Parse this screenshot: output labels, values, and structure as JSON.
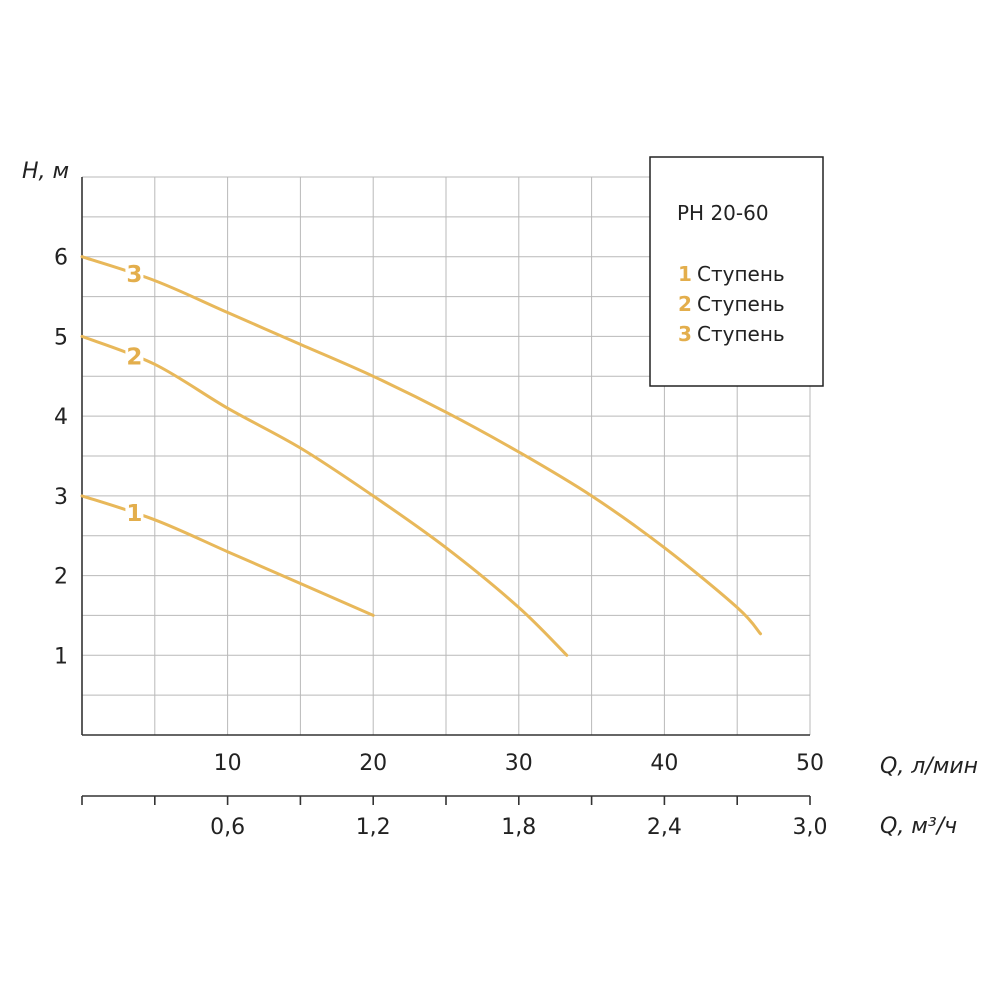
{
  "chart_data": {
    "type": "line",
    "title": "",
    "xlabel": "Q, л/мин",
    "x2label": "Q, м³/ч",
    "ylabel": "H, м",
    "xlim": [
      0,
      50
    ],
    "ylim": [
      0,
      7
    ],
    "x_ticks": [
      "10",
      "20",
      "30",
      "40",
      "50"
    ],
    "x_tick_values": [
      10,
      20,
      30,
      40,
      50
    ],
    "x2_ticks": [
      "0,6",
      "1,2",
      "1,8",
      "2,4",
      "3,0"
    ],
    "x2_tick_values": [
      10,
      20,
      30,
      40,
      50
    ],
    "y_ticks": [
      "1",
      "2",
      "3",
      "4",
      "5",
      "6"
    ],
    "y_tick_values": [
      1,
      2,
      3,
      4,
      5,
      6
    ],
    "grid": true,
    "curve_color": "#e8b85a",
    "label_color": "#e3ae4c",
    "legend": {
      "position": "top-right",
      "title": "PH 20-60",
      "entries": [
        {
          "num": "1",
          "text": "Ступень"
        },
        {
          "num": "2",
          "text": "Ступень"
        },
        {
          "num": "3",
          "text": "Ступень"
        }
      ]
    },
    "series": [
      {
        "label": "1",
        "x": [
          0,
          5,
          10,
          15,
          20
        ],
        "y": [
          3.0,
          2.7,
          2.3,
          1.9,
          1.5
        ]
      },
      {
        "label": "2",
        "x": [
          0,
          5,
          10,
          15,
          20,
          25,
          30,
          33.3
        ],
        "y": [
          5.0,
          4.65,
          4.1,
          3.6,
          3.0,
          2.35,
          1.6,
          1.0
        ]
      },
      {
        "label": "3",
        "x": [
          0,
          5,
          10,
          15,
          20,
          25,
          30,
          35,
          40,
          45,
          46.6
        ],
        "y": [
          6.0,
          5.7,
          5.3,
          4.9,
          4.5,
          4.05,
          3.55,
          3.0,
          2.35,
          1.6,
          1.27
        ]
      }
    ]
  }
}
